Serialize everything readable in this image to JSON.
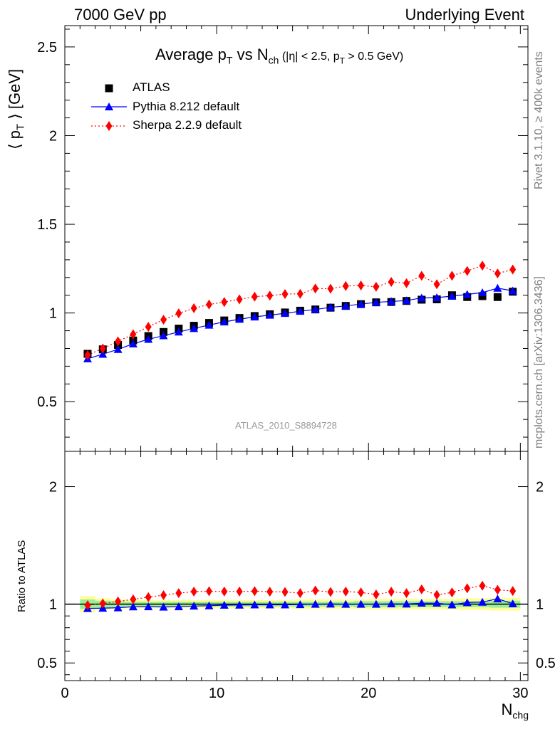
{
  "header": {
    "left": "7000 GeV pp",
    "right": "Underlying Event"
  },
  "side": {
    "rivet": "Rivet 3.1.10, ≥ 400k events",
    "mcplots": "mcplots.cern.ch [arXiv:1306.3436]"
  },
  "chart_data": {
    "type": "scatter",
    "title_main": "Average p",
    "title_sub1": "T",
    "title_vs": " vs N",
    "title_sub2": "ch",
    "title_cut1": " (|η| < 2.5, p",
    "title_sub3": "T",
    "title_cut2": " > 0.5 GeV)",
    "ylabel": "⟨ p",
    "ylabel_sub": "T",
    "ylabel_end": " ⟩ [GeV]",
    "ratio_ylabel": "Ratio to ATLAS",
    "xlabel": "N",
    "xlabel_sub": "chg",
    "analysis_tag": "ATLAS_2010_S8894728",
    "xlim": [
      0,
      30.5
    ],
    "ylim": [
      0.22,
      2.62
    ],
    "ratio_ylim": [
      0.35,
      2.3
    ],
    "xticks": [
      0,
      10,
      20,
      30
    ],
    "yticks": [
      0.5,
      1,
      1.5,
      2,
      2.5
    ],
    "ytick_labels": [
      "0.5",
      "1",
      "1.5",
      "2",
      "2.5"
    ],
    "ratio_yticks": [
      0.5,
      1,
      2
    ],
    "ratio_ytick_labels": [
      "0.5",
      "1",
      "2"
    ],
    "x": [
      1.5,
      2.5,
      3.5,
      4.5,
      5.5,
      6.5,
      7.5,
      8.5,
      9.5,
      10.5,
      11.5,
      12.5,
      13.5,
      14.5,
      15.5,
      16.5,
      17.5,
      18.5,
      19.5,
      20.5,
      21.5,
      22.5,
      23.5,
      24.5,
      25.5,
      26.5,
      27.5,
      28.5,
      29.5
    ],
    "series": [
      {
        "name": "ATLAS",
        "color": "#000000",
        "marker": "square",
        "values": [
          0.77,
          0.795,
          0.82,
          0.845,
          0.87,
          0.893,
          0.912,
          0.928,
          0.944,
          0.958,
          0.972,
          0.983,
          0.993,
          1.003,
          1.013,
          1.02,
          1.03,
          1.04,
          1.05,
          1.06,
          1.062,
          1.068,
          1.075,
          1.077,
          1.1,
          1.09,
          1.095,
          1.09,
          1.12
        ]
      },
      {
        "name": "Pythia 8.212 default",
        "color": "#0000ff",
        "marker": "triangle",
        "line": "solid",
        "values": [
          0.742,
          0.768,
          0.795,
          0.826,
          0.852,
          0.872,
          0.893,
          0.913,
          0.932,
          0.95,
          0.965,
          0.978,
          0.988,
          0.998,
          1.01,
          1.02,
          1.032,
          1.04,
          1.05,
          1.06,
          1.065,
          1.07,
          1.085,
          1.087,
          1.095,
          1.105,
          1.115,
          1.14,
          1.125
        ]
      },
      {
        "name": "Sherpa 2.2.9 default",
        "color": "#ff0000",
        "marker": "diamond",
        "line": "dotted",
        "values": [
          0.763,
          0.8,
          0.84,
          0.88,
          0.922,
          0.962,
          0.998,
          1.027,
          1.048,
          1.062,
          1.077,
          1.092,
          1.098,
          1.107,
          1.108,
          1.138,
          1.137,
          1.152,
          1.155,
          1.148,
          1.175,
          1.168,
          1.21,
          1.162,
          1.21,
          1.237,
          1.267,
          1.223,
          1.245
        ]
      }
    ],
    "ratio": {
      "band_inner": [
        0.04,
        0.03,
        0.025,
        0.02,
        0.02,
        0.02,
        0.02,
        0.02,
        0.02,
        0.02,
        0.02,
        0.02,
        0.02,
        0.02,
        0.02,
        0.02,
        0.02,
        0.02,
        0.025,
        0.025,
        0.025,
        0.025,
        0.025,
        0.025,
        0.025,
        0.025,
        0.025,
        0.03,
        0.03
      ],
      "band_outer": [
        0.07,
        0.05,
        0.04,
        0.035,
        0.035,
        0.035,
        0.035,
        0.035,
        0.035,
        0.035,
        0.035,
        0.035,
        0.035,
        0.035,
        0.04,
        0.04,
        0.04,
        0.04,
        0.04,
        0.045,
        0.045,
        0.045,
        0.045,
        0.045,
        0.045,
        0.05,
        0.05,
        0.055,
        0.055
      ],
      "pythia": [
        0.964,
        0.966,
        0.97,
        0.978,
        0.979,
        0.976,
        0.979,
        0.984,
        0.987,
        0.992,
        0.993,
        0.995,
        0.995,
        0.995,
        0.997,
        1.0,
        1.002,
        1.0,
        1.0,
        1.0,
        1.003,
        1.002,
        1.009,
        1.009,
        0.995,
        1.014,
        1.018,
        1.046,
        1.004
      ],
      "sherpa": [
        0.991,
        1.006,
        1.024,
        1.041,
        1.06,
        1.077,
        1.094,
        1.107,
        1.11,
        1.108,
        1.108,
        1.111,
        1.106,
        1.104,
        1.094,
        1.116,
        1.104,
        1.108,
        1.1,
        1.083,
        1.106,
        1.094,
        1.126,
        1.079,
        1.1,
        1.135,
        1.157,
        1.122,
        1.112
      ]
    },
    "legend_position": "top-left"
  }
}
